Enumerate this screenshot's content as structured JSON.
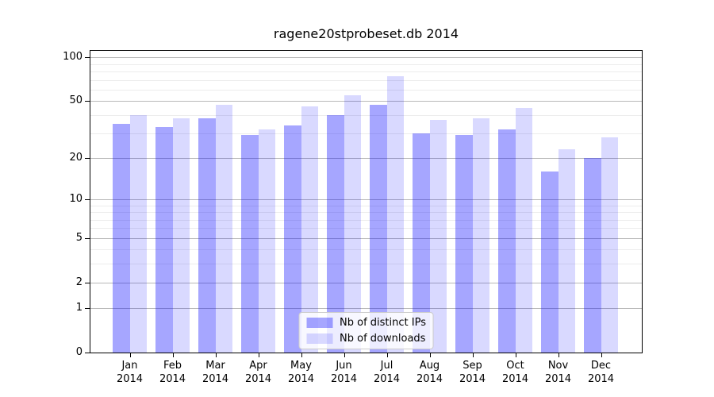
{
  "chart_data": {
    "type": "bar",
    "title": "ragene20stprobeset.db 2014",
    "xlabel": "",
    "ylabel": "",
    "categories": [
      "Jan 2014",
      "Feb 2014",
      "Mar 2014",
      "Apr 2014",
      "May 2014",
      "Jun 2014",
      "Jul 2014",
      "Aug 2014",
      "Sep 2014",
      "Oct 2014",
      "Nov 2014",
      "Dec 2014"
    ],
    "series": [
      {
        "name": "Nb of distinct IPs",
        "color": "rgba(0,0,255,0.35)",
        "values": [
          35,
          33,
          38,
          29,
          34,
          40,
          47,
          30,
          29,
          32,
          16,
          20
        ]
      },
      {
        "name": "Nb of downloads",
        "color": "rgba(0,0,255,0.15)",
        "values": [
          40,
          38,
          47,
          32,
          46,
          55,
          74,
          37,
          38,
          45,
          23,
          28
        ]
      }
    ],
    "yscale": "log1p",
    "ylim": [
      0,
      111.2
    ],
    "ytick_values": [
      0,
      1,
      2,
      5,
      10,
      20,
      50,
      100
    ],
    "ytick_labels": [
      "0",
      "1",
      "2",
      "5",
      "10",
      "20",
      "50",
      "100"
    ],
    "minor_gridline_values": [
      3,
      4,
      6,
      7,
      8,
      9,
      30,
      40,
      60,
      70,
      80,
      90
    ],
    "grid": true,
    "legend_position": "lower center",
    "colors": {
      "background": "#ffffff",
      "spine": "#000000",
      "major_grid": "#b8b8b8",
      "minor_grid": "#ececec",
      "text": "#000000",
      "legend_border": "#cccccc",
      "legend_background": "rgba(255,255,255,0.8)"
    }
  }
}
